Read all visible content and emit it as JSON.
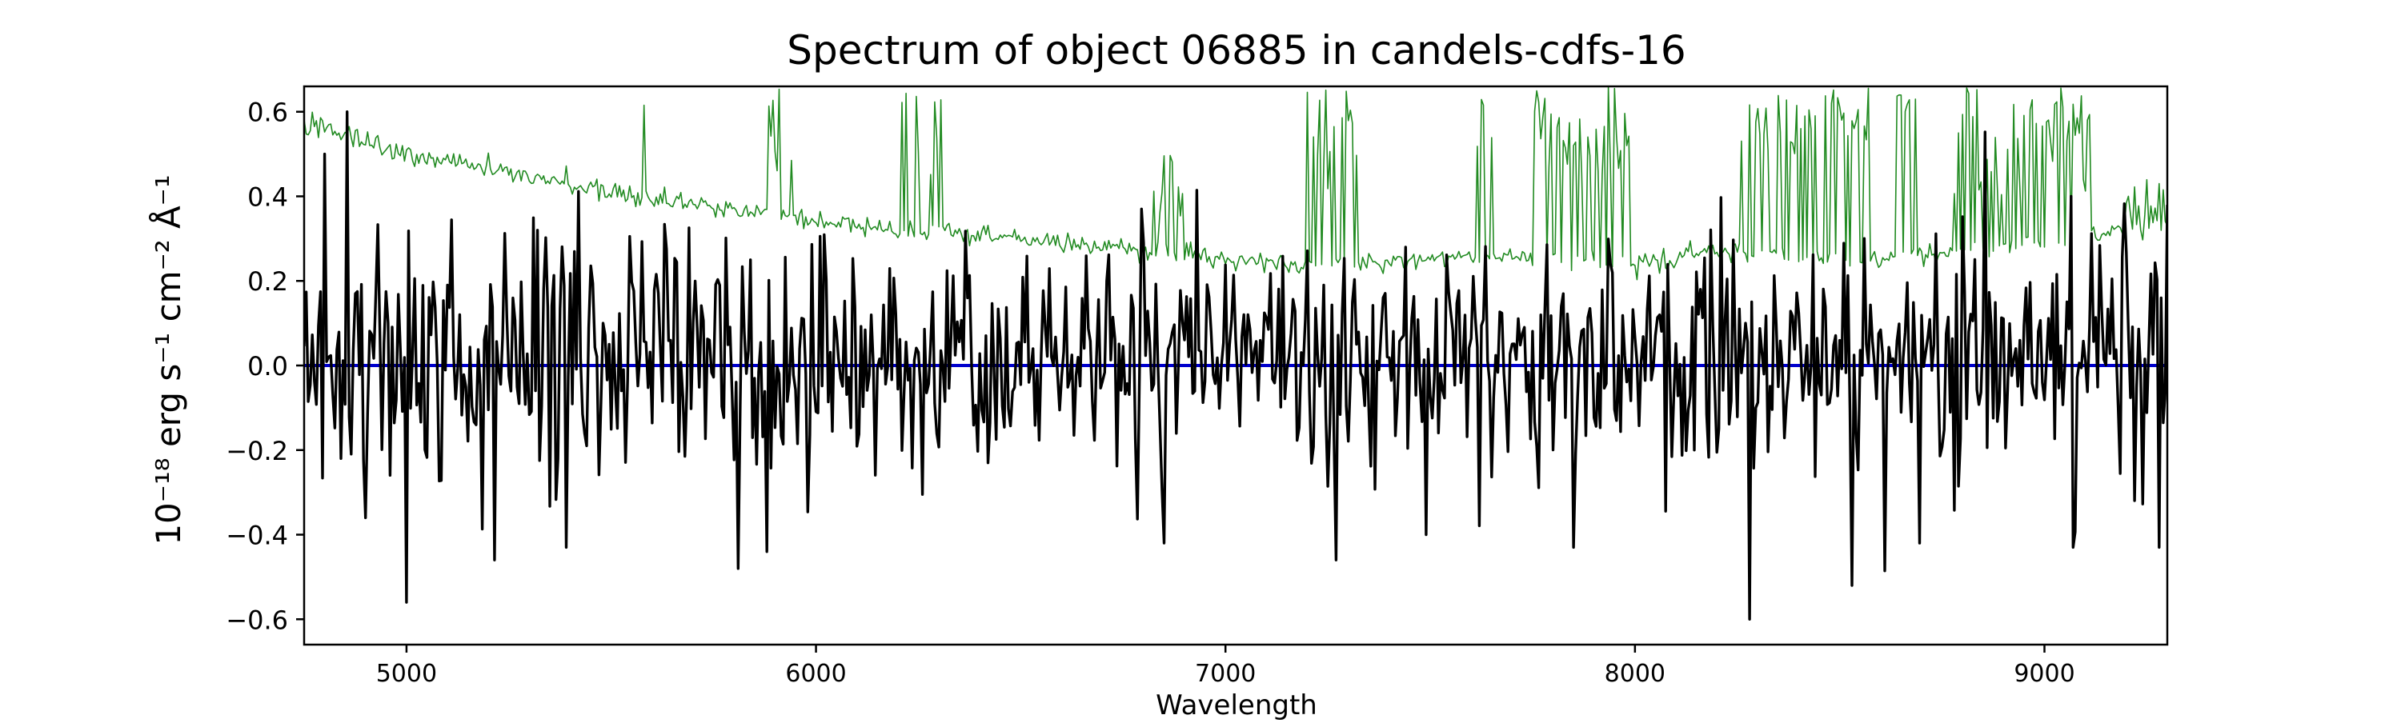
{
  "chart_data": {
    "type": "line",
    "title": "Spectrum of object 06885 in candels-cdfs-16",
    "xlabel": "Wavelength",
    "ylabel": "10⁻¹⁸ erg s⁻¹ cm⁻² Å⁻¹",
    "xlim": [
      4750,
      9300
    ],
    "ylim": [
      -0.66,
      0.66
    ],
    "x_ticks": [
      5000,
      6000,
      7000,
      8000,
      9000
    ],
    "y_ticks": [
      -0.6,
      -0.4,
      -0.2,
      0.0,
      0.2,
      0.4,
      0.6
    ],
    "grid": false,
    "legend": "none",
    "series": [
      {
        "role": "flux",
        "color": "#000000",
        "x_range": [
          4750,
          9300
        ],
        "sample_step": 5,
        "level": 0.02,
        "noise_amplitude_blue": 0.3,
        "noise_amplitude_mid": 0.18,
        "noise_amplitude_red": 0.25
      },
      {
        "role": "error",
        "color": "#228B22",
        "x_range": [
          4750,
          9300
        ],
        "x": [
          4750,
          4800,
          5000,
          5500,
          6000,
          6500,
          7000,
          7300,
          7600,
          8000,
          8200,
          8600,
          9000,
          9300
        ],
        "y": [
          0.58,
          0.56,
          0.5,
          0.41,
          0.34,
          0.3,
          0.25,
          0.24,
          0.26,
          0.24,
          0.27,
          0.25,
          0.29,
          0.34
        ]
      },
      {
        "role": "zero",
        "color": "#0000CD",
        "x": [
          4750,
          9300
        ],
        "y": [
          0.0,
          0.0
        ]
      }
    ],
    "noise_seed": 6885,
    "spikes": [
      {
        "x": 4800,
        "y": 0.5
      },
      {
        "x": 4855,
        "y": 0.6
      },
      {
        "x": 4900,
        "y": -0.36
      },
      {
        "x": 5000,
        "y": -0.56
      },
      {
        "x": 5216,
        "y": -0.46
      },
      {
        "x": 5390,
        "y": -0.43
      },
      {
        "x": 5810,
        "y": -0.48
      },
      {
        "x": 5880,
        "y": -0.44
      },
      {
        "x": 6848,
        "y": -0.42
      },
      {
        "x": 7270,
        "y": -0.46
      },
      {
        "x": 7490,
        "y": -0.4
      },
      {
        "x": 7850,
        "y": -0.43
      },
      {
        "x": 8278,
        "y": -0.6
      },
      {
        "x": 8530,
        "y": -0.52
      },
      {
        "x": 8695,
        "y": -0.42
      },
      {
        "x": 9070,
        "y": -0.43
      },
      {
        "x": 9280,
        "y": -0.43
      },
      {
        "x": 9300,
        "y": 0.38
      }
    ],
    "error_line_clusters": [
      {
        "x": [
          5560,
          5590
        ],
        "min_y": 0.6,
        "max_y": 0.66
      },
      {
        "x": [
          5880,
          5950
        ],
        "min_y": 0.45,
        "max_y": 0.66
      },
      {
        "x": [
          6210,
          6320
        ],
        "min_y": 0.4,
        "max_y": 0.66
      },
      {
        "x": [
          6820,
          6900
        ],
        "min_y": 0.35,
        "max_y": 0.5
      },
      {
        "x": [
          7200,
          7320
        ],
        "min_y": 0.4,
        "max_y": 0.66
      },
      {
        "x": [
          7600,
          7650
        ],
        "min_y": 0.5,
        "max_y": 0.66
      },
      {
        "x": [
          7750,
          7990
        ],
        "min_y": 0.45,
        "max_y": 0.66
      },
      {
        "x": [
          8260,
          8580
        ],
        "min_y": 0.5,
        "max_y": 0.66
      },
      {
        "x": [
          8640,
          8690
        ],
        "min_y": 0.6,
        "max_y": 0.64
      },
      {
        "x": [
          8780,
          9120
        ],
        "min_y": 0.4,
        "max_y": 0.66
      },
      {
        "x": [
          9200,
          9300
        ],
        "min_y": 0.35,
        "max_y": 0.45
      }
    ]
  }
}
